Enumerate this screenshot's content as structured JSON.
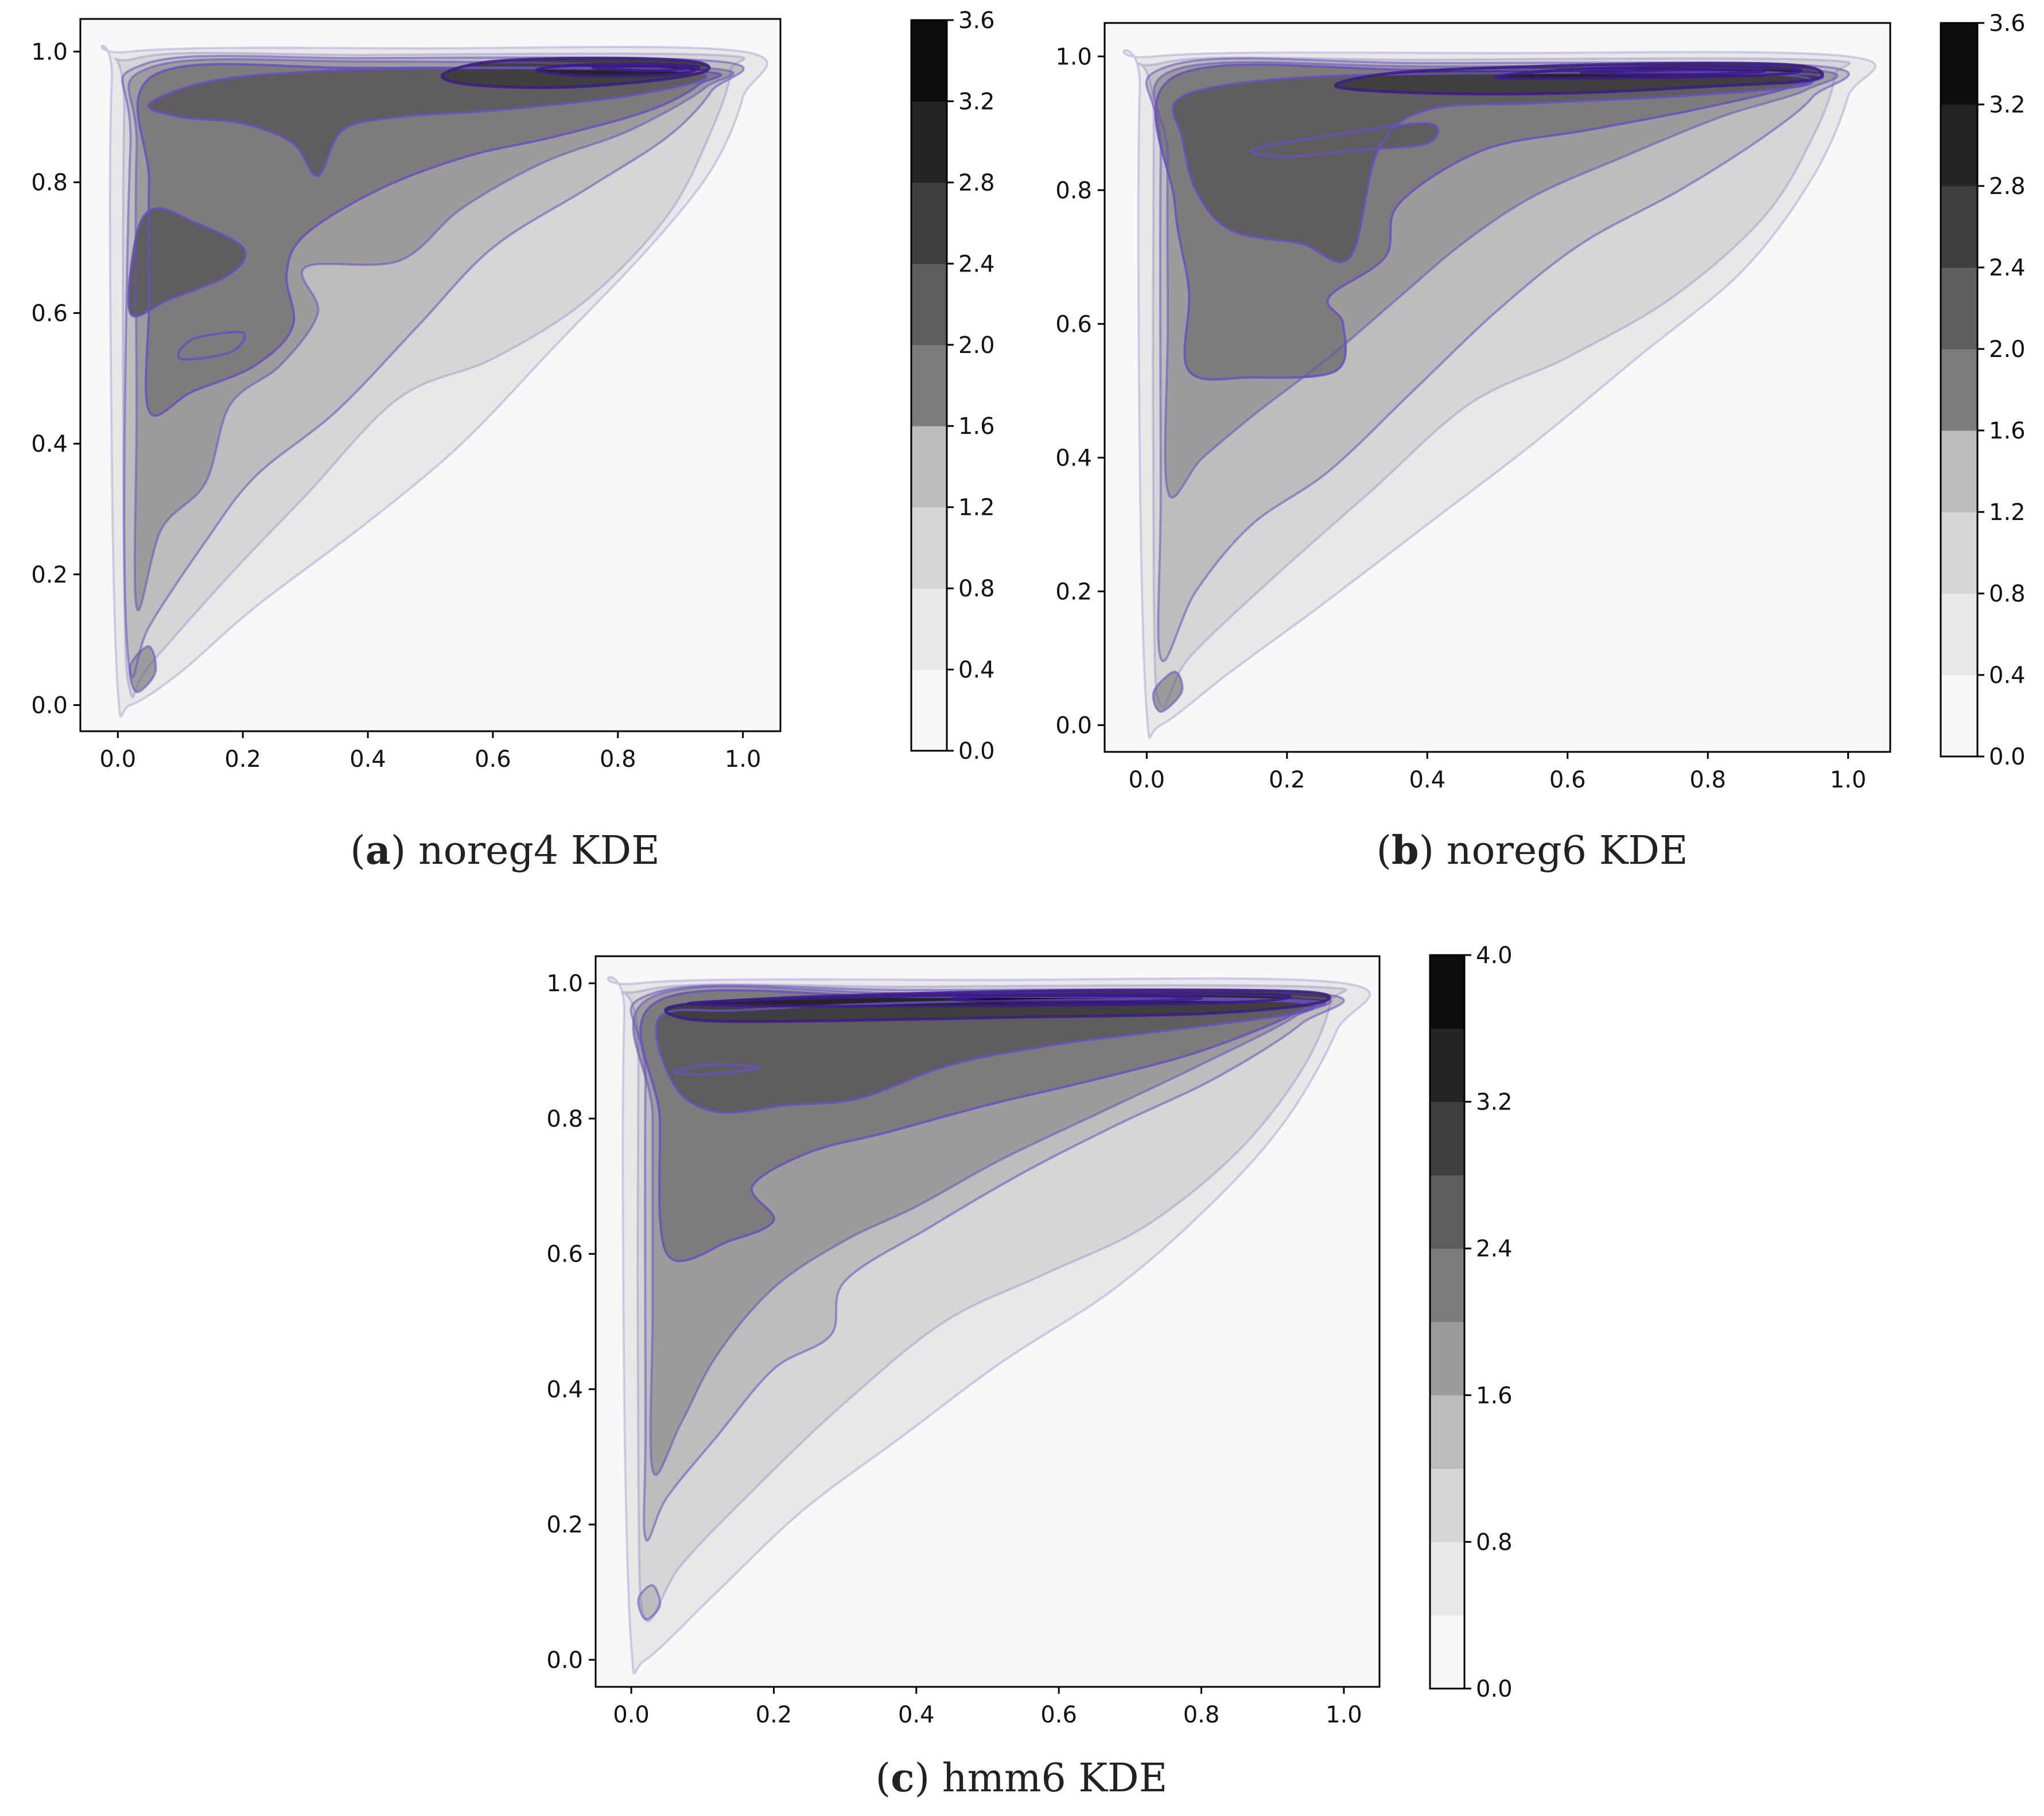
{
  "chart_data": [
    {
      "id": "a",
      "type": "heatmap",
      "subtype": "filled-contour-kde",
      "caption_letter": "a",
      "caption_text": "noreg4 KDE",
      "xlabel": "",
      "ylabel": "",
      "xlim": [
        -0.06,
        1.06
      ],
      "ylim": [
        -0.04,
        1.05
      ],
      "xticks": [
        "0.0",
        "0.2",
        "0.4",
        "0.6",
        "0.8",
        "1.0"
      ],
      "yticks": [
        "0.0",
        "0.2",
        "0.4",
        "0.6",
        "0.8",
        "1.0"
      ],
      "colorbar": {
        "range": [
          0.0,
          3.6
        ],
        "levels": [
          0.0,
          0.4,
          0.8,
          1.2,
          1.6,
          2.0,
          2.4,
          2.8,
          3.2,
          3.6
        ],
        "ticks": [
          "0.0",
          "0.4",
          "0.8",
          "1.2",
          "1.6",
          "2.0",
          "2.4",
          "2.8",
          "3.2",
          "3.6"
        ]
      },
      "density_peak": {
        "x": 0.88,
        "y": 0.97,
        "value": 3.5
      },
      "grid": false
    },
    {
      "id": "b",
      "type": "heatmap",
      "subtype": "filled-contour-kde",
      "caption_letter": "b",
      "caption_text": "noreg6 KDE",
      "xlabel": "",
      "ylabel": "",
      "xlim": [
        -0.06,
        1.06
      ],
      "ylim": [
        -0.04,
        1.05
      ],
      "xticks": [
        "0.0",
        "0.2",
        "0.4",
        "0.6",
        "0.8",
        "1.0"
      ],
      "yticks": [
        "0.0",
        "0.2",
        "0.4",
        "0.6",
        "0.8",
        "1.0"
      ],
      "colorbar": {
        "range": [
          0.0,
          3.6
        ],
        "levels": [
          0.0,
          0.4,
          0.8,
          1.2,
          1.6,
          2.0,
          2.4,
          2.8,
          3.2,
          3.6
        ],
        "ticks": [
          "0.0",
          "0.4",
          "0.8",
          "1.2",
          "1.6",
          "2.0",
          "2.4",
          "2.8",
          "3.2",
          "3.6"
        ]
      },
      "density_peak": {
        "x": 0.75,
        "y": 0.975,
        "value": 3.55
      },
      "grid": false
    },
    {
      "id": "c",
      "type": "heatmap",
      "subtype": "filled-contour-kde",
      "caption_letter": "c",
      "caption_text": "hmm6 KDE",
      "xlabel": "",
      "ylabel": "",
      "xlim": [
        -0.05,
        1.05
      ],
      "ylim": [
        -0.04,
        1.04
      ],
      "xticks": [
        "0.0",
        "0.2",
        "0.4",
        "0.6",
        "0.8",
        "1.0"
      ],
      "yticks": [
        "0.0",
        "0.2",
        "0.4",
        "0.6",
        "0.8",
        "1.0"
      ],
      "colorbar": {
        "range": [
          0.0,
          4.0
        ],
        "levels": [
          0.0,
          0.4,
          0.8,
          1.2,
          1.6,
          2.0,
          2.4,
          2.8,
          3.2,
          3.6,
          4.0
        ],
        "ticks": [
          "0.0",
          "0.8",
          "1.6",
          "2.4",
          "3.2",
          "4.0"
        ]
      },
      "density_peak": {
        "x": 0.6,
        "y": 0.975,
        "value": 3.9
      },
      "grid": false
    }
  ],
  "colors": {
    "level_fills": [
      "#f8f8f8",
      "#e8e8e8",
      "#d6d6d6",
      "#bdbdbd",
      "#9c9c9c",
      "#7c7c7c",
      "#5e5e5e",
      "#3f3f3f",
      "#252525",
      "#0e0e0e"
    ],
    "contour_line": "#6a4fc2",
    "contour_line_dark": "#3d1a8c",
    "axis": "#000000"
  }
}
